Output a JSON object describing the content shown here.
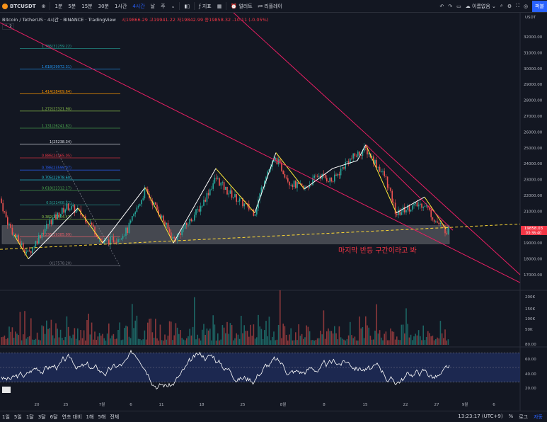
{
  "toolbar": {
    "symbol": "BTCUSDT",
    "intervals": [
      "1분",
      "5분",
      "15분",
      "30분",
      "1시간",
      "4시간",
      "날",
      "주"
    ],
    "active_interval": "4시간",
    "indicators_label": "지표",
    "alert_label": "얼러트",
    "replay_label": "리플레이",
    "layout_name": "이름없음",
    "publish_label": "퍼블"
  },
  "legend": {
    "title": "Bitcoin / TetherUS · 4시간 · BINANCE · TradingView",
    "open": "시19866.29",
    "high": "고19941.22",
    "low": "저19842.99",
    "close": "종19858.32",
    "change": "-10.11 (-0.05%)"
  },
  "collapse_label": "2",
  "currency": "USDT",
  "price_axis": [
    "32000.00",
    "31000.00",
    "30000.00",
    "29000.00",
    "28000.00",
    "27000.00",
    "26000.00",
    "25000.00",
    "24000.00",
    "23000.00",
    "22000.00",
    "21000.00",
    "20000.00",
    "19000.00",
    "18000.00",
    "17000.00"
  ],
  "current_price": {
    "value": "19858.03",
    "countdown": "03:36:40"
  },
  "volume_axis": [
    "200K",
    "150K",
    "100K",
    "50K"
  ],
  "rsi_axis": [
    "80.00",
    "60.00",
    "40.00",
    "20.00"
  ],
  "time_axis": [
    "20",
    "25",
    "7월",
    "6",
    "11",
    "18",
    "25",
    "8월",
    "8",
    "15",
    "22",
    "27",
    "9월",
    "6"
  ],
  "fib_levels": [
    {
      "label": "1.786(31259.22)",
      "color": "#26a69a"
    },
    {
      "label": "1.618(29972.31)",
      "color": "#2196f3"
    },
    {
      "label": "1.414(28409.64)",
      "color": "#ff9800"
    },
    {
      "label": "1.272(27321.90)",
      "color": "#8bc34a"
    },
    {
      "label": "1.131(26241.82)",
      "color": "#4caf50"
    },
    {
      "label": "1(25238.34)",
      "color": "#e0e3eb"
    },
    {
      "label": "0.886(24365.05)",
      "color": "#f23645"
    },
    {
      "label": "0.786(23599.07)",
      "color": "#2962ff"
    },
    {
      "label": "0.705(22978.60)",
      "color": "#26c6da"
    },
    {
      "label": "0.618(22312.17)",
      "color": "#4caf50"
    },
    {
      "label": "0.5(21408.32)",
      "color": "#26a69a"
    },
    {
      "label": "0.382(20504.47)",
      "color": "#8bc34a"
    },
    {
      "label": "0.236(19385.99)",
      "color": "#f23645"
    },
    {
      "label": "0(17578.20)",
      "color": "#787b86"
    }
  ],
  "annotation": "마지막 반등 구간이라고 봐",
  "bottom": {
    "timeframes": [
      "1일",
      "5일",
      "1달",
      "3달",
      "6달",
      "연초 대비",
      "1해",
      "5해",
      "전체"
    ],
    "time": "13:23:17 (UTC+9)",
    "percent": "%",
    "log": "로그",
    "auto": "자동"
  },
  "colors": {
    "up": "#26a69a",
    "down": "#ef5350",
    "trend": "#e91e63",
    "zigzag_up": "#ffffff",
    "zigzag_down": "#ffeb3b",
    "channel": "#fdd835",
    "rsi": "#ffffff",
    "rsi_band": "#1e2a55",
    "zone": "#c8c8c8"
  }
}
